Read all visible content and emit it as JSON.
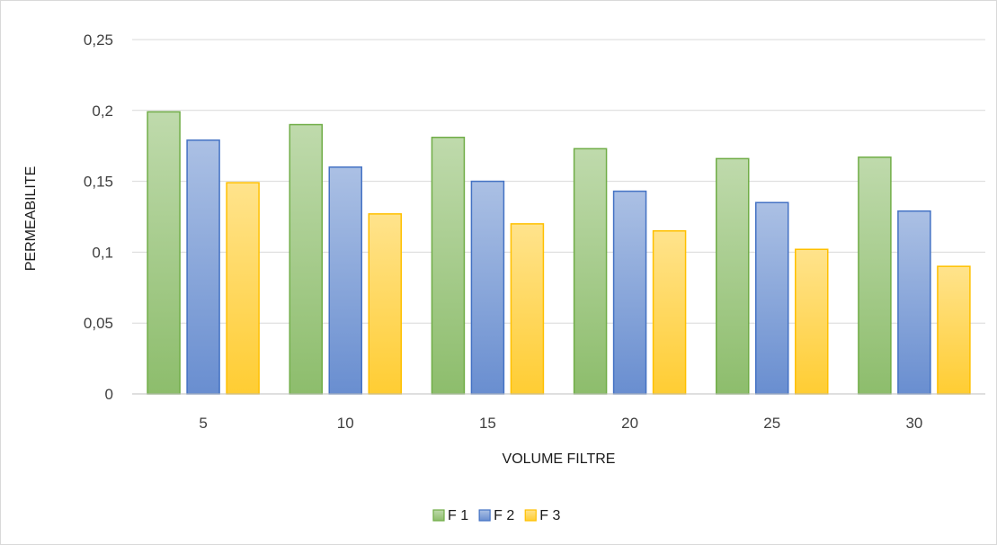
{
  "chart_data": {
    "type": "bar",
    "title": "",
    "xlabel": "VOLUME FILTRE",
    "ylabel": "PERMEABILITE",
    "categories": [
      "5",
      "10",
      "15",
      "20",
      "25",
      "30"
    ],
    "series": [
      {
        "name": "F 1",
        "values": [
          0.199,
          0.19,
          0.181,
          0.173,
          0.166,
          0.167
        ],
        "color": "#70ad47"
      },
      {
        "name": "F 2",
        "values": [
          0.179,
          0.16,
          0.15,
          0.143,
          0.135,
          0.129
        ],
        "color": "#4472c4"
      },
      {
        "name": "F 3",
        "values": [
          0.149,
          0.127,
          0.12,
          0.115,
          0.102,
          0.09
        ],
        "color": "#ffc000"
      }
    ],
    "ylim": [
      0,
      0.25
    ],
    "yticks": [
      0,
      0.05,
      0.1,
      0.15,
      0.2,
      0.25
    ],
    "ytick_labels": [
      "0",
      "0,05",
      "0,1",
      "0,15",
      "0,2",
      "0,25"
    ],
    "grid": true,
    "legend_position": "bottom"
  }
}
